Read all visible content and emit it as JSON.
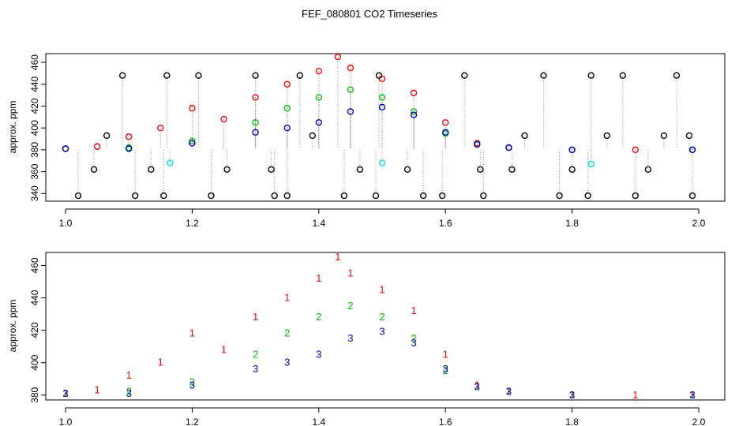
{
  "figure": {
    "title": "FEF_080801  CO2 Timeseries"
  },
  "chart_data": [
    {
      "type": "scatter",
      "panel": "top",
      "title": "FEF_080801  CO2 Timeseries",
      "xlabel": "",
      "ylabel": "approx. ppm",
      "xlim": [
        1.0,
        2.0
      ],
      "ylim": [
        333,
        468
      ],
      "x_ticks": [
        "1.0",
        "1.2",
        "1.4",
        "1.6",
        "1.8",
        "2.0"
      ],
      "y_ticks": [
        "340",
        "360",
        "380",
        "400",
        "420",
        "440",
        "460"
      ],
      "marker": "circle",
      "connector_lines": "grey dotted vertical lines between points at each time",
      "series": [
        {
          "name": "red",
          "color": "#ff0000",
          "x": [
            1.0,
            1.05,
            1.1,
            1.15,
            1.2,
            1.25,
            1.3,
            1.35,
            1.4,
            1.43,
            1.45,
            1.5,
            1.55,
            1.6,
            1.65,
            1.7,
            1.8,
            1.9,
            1.99
          ],
          "y": [
            381,
            383,
            392,
            400,
            418,
            408,
            428,
            440,
            452,
            465,
            455,
            445,
            432,
            405,
            386,
            382,
            380,
            380,
            380
          ]
        },
        {
          "name": "green",
          "color": "#00c000",
          "x": [
            1.0,
            1.1,
            1.2,
            1.3,
            1.35,
            1.4,
            1.45,
            1.5,
            1.55,
            1.6,
            1.65,
            1.7,
            1.8,
            1.99
          ],
          "y": [
            381,
            382,
            388,
            405,
            418,
            428,
            435,
            428,
            415,
            395,
            385,
            382,
            380,
            380
          ]
        },
        {
          "name": "blue",
          "color": "#0000cc",
          "x": [
            1.0,
            1.1,
            1.2,
            1.3,
            1.35,
            1.4,
            1.45,
            1.5,
            1.55,
            1.6,
            1.65,
            1.7,
            1.8,
            1.99
          ],
          "y": [
            381,
            381,
            386,
            396,
            400,
            405,
            415,
            419,
            412,
            396,
            385,
            382,
            380,
            380
          ]
        },
        {
          "name": "black",
          "color": "#000000",
          "x": [
            1.02,
            1.045,
            1.065,
            1.09,
            1.11,
            1.135,
            1.155,
            1.16,
            1.21,
            1.23,
            1.255,
            1.3,
            1.325,
            1.33,
            1.35,
            1.37,
            1.39,
            1.44,
            1.465,
            1.49,
            1.495,
            1.54,
            1.565,
            1.595,
            1.63,
            1.655,
            1.66,
            1.705,
            1.725,
            1.755,
            1.78,
            1.8,
            1.825,
            1.83,
            1.855,
            1.88,
            1.9,
            1.92,
            1.945,
            1.965,
            1.985,
            1.99
          ],
          "y": [
            338,
            362,
            393,
            448,
            338,
            362,
            338,
            448,
            448,
            338,
            362,
            448,
            362,
            338,
            338,
            448,
            393,
            338,
            362,
            338,
            448,
            362,
            338,
            338,
            448,
            362,
            338,
            362,
            393,
            448,
            338,
            362,
            338,
            448,
            393,
            448,
            338,
            362,
            393,
            448,
            393,
            338
          ]
        },
        {
          "name": "cyan",
          "color": "#00e0e0",
          "x": [
            1.165,
            1.5,
            1.83
          ],
          "y": [
            368,
            368,
            367
          ]
        }
      ]
    },
    {
      "type": "scatter",
      "panel": "bottom",
      "title": "",
      "xlabel": "",
      "ylabel": "approx. ppm",
      "xlim": [
        1.0,
        2.0
      ],
      "ylim": [
        377,
        468
      ],
      "x_ticks": [
        "1.0",
        "1.2",
        "1.4",
        "1.6",
        "1.8",
        "2.0"
      ],
      "y_ticks": [
        "380",
        "400",
        "420",
        "440",
        "460"
      ],
      "marker": "series number",
      "series": [
        {
          "name": "1",
          "label": "1",
          "color": "#ff0000",
          "x": [
            1.0,
            1.05,
            1.1,
            1.15,
            1.2,
            1.25,
            1.3,
            1.35,
            1.4,
            1.43,
            1.45,
            1.5,
            1.55,
            1.6,
            1.65,
            1.7,
            1.8,
            1.9,
            1.99
          ],
          "y": [
            381,
            383,
            392,
            400,
            418,
            408,
            428,
            440,
            452,
            465,
            455,
            445,
            432,
            405,
            386,
            382,
            380,
            380,
            380
          ]
        },
        {
          "name": "2",
          "label": "2",
          "color": "#00c000",
          "x": [
            1.0,
            1.1,
            1.2,
            1.3,
            1.35,
            1.4,
            1.45,
            1.5,
            1.55,
            1.6,
            1.65,
            1.7,
            1.8,
            1.99
          ],
          "y": [
            381,
            382,
            388,
            405,
            418,
            428,
            435,
            428,
            415,
            395,
            385,
            382,
            380,
            380
          ]
        },
        {
          "name": "3",
          "label": "3",
          "color": "#0000cc",
          "x": [
            1.0,
            1.1,
            1.2,
            1.3,
            1.35,
            1.4,
            1.45,
            1.5,
            1.55,
            1.6,
            1.65,
            1.7,
            1.8,
            1.99
          ],
          "y": [
            381,
            381,
            386,
            396,
            400,
            405,
            415,
            419,
            412,
            396,
            385,
            382,
            380,
            380
          ]
        }
      ]
    }
  ]
}
